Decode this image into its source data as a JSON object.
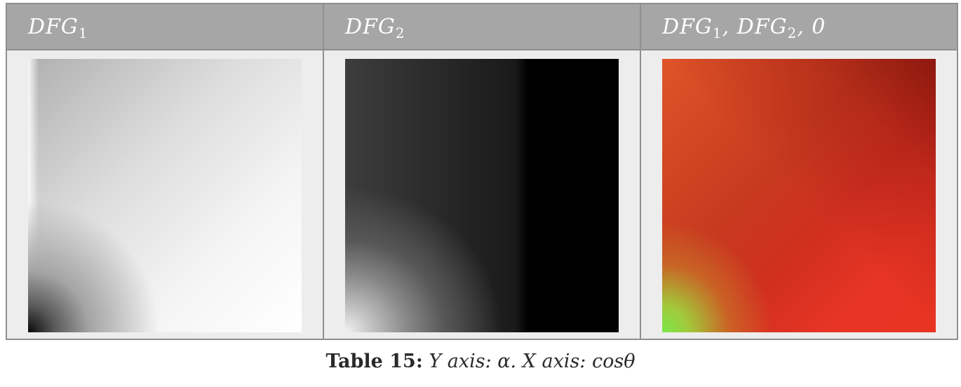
{
  "table": {
    "headers": [
      {
        "main": "DFG",
        "sub": "1",
        "rest": ""
      },
      {
        "main": "DFG",
        "sub": "2",
        "rest": ""
      },
      {
        "main": "DFG",
        "sub": "1",
        "rest": ", DFG",
        "sub2": "2",
        "tail": ", 0"
      }
    ],
    "images": [
      {
        "name": "DFG1 lookup texture (grayscale)"
      },
      {
        "name": "DFG2 lookup texture (grayscale)"
      },
      {
        "name": "DFG1, DFG2, 0 combined texture (RG)"
      }
    ]
  },
  "caption": {
    "label": "Table 15:",
    "body": " Y axis: α. X axis: cosθ"
  },
  "colors": {
    "header_bg": "#a6a6a6",
    "cell_bg": "#ededed",
    "border": "#8f8f8f",
    "header_text": "#ffffff"
  }
}
